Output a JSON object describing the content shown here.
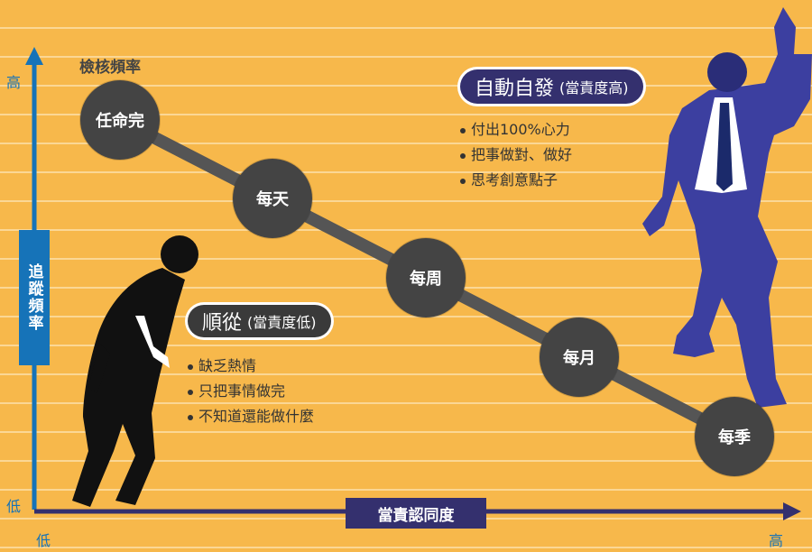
{
  "y_axis": {
    "high": "高",
    "low": "低",
    "title": "追蹤頻率"
  },
  "x_axis": {
    "low": "低",
    "high": "高",
    "title": "當責認同度"
  },
  "frequency_title": "檢核頻率",
  "nodes": [
    "任命完",
    "每天",
    "每周",
    "每月",
    "每季"
  ],
  "high_accountability": {
    "title": "自動自發",
    "subtitle": "(當責度高)",
    "points": [
      "付出100%心力",
      "把事做對、做好",
      "思考創意點子"
    ]
  },
  "low_accountability": {
    "title": "順從",
    "subtitle": "(當責度低)",
    "points": [
      "缺乏熱情",
      "只把事情做完",
      "不知道還能做什麼"
    ]
  },
  "colors": {
    "background": "#f7b84b",
    "y_axis": "#1673b8",
    "x_axis": "#34306e",
    "node": "#444444"
  }
}
